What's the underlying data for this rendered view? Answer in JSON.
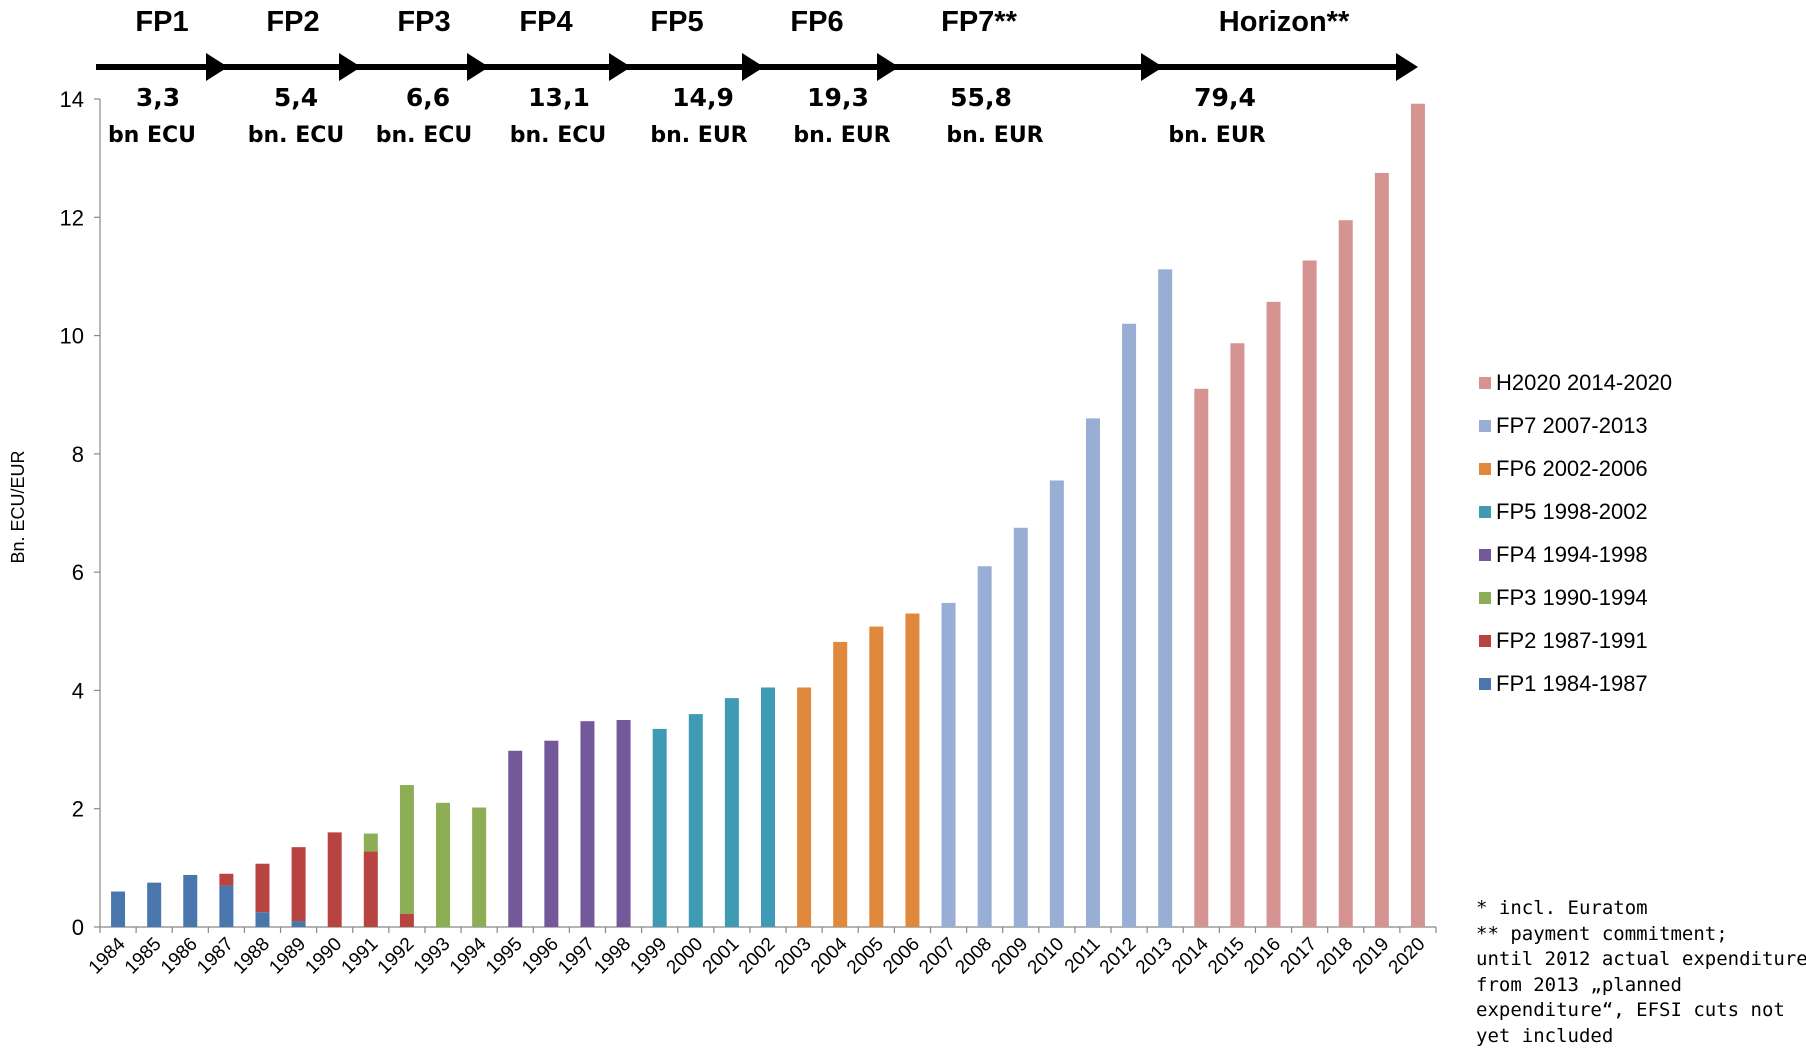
{
  "chart_data": {
    "type": "bar",
    "ylabel": "Bn. ECU/EUR",
    "ylim": [
      0,
      14
    ],
    "yticks": [
      "0",
      "2",
      "4",
      "6",
      "8",
      "10",
      "12",
      "14"
    ],
    "grid": false,
    "legend_position": "right",
    "categories": [
      "1984",
      "1985",
      "1986",
      "1987",
      "1988",
      "1989",
      "1990",
      "1991",
      "1992",
      "1993",
      "1994",
      "1995",
      "1996",
      "1997",
      "1998",
      "1999",
      "2000",
      "2001",
      "2002",
      "2003",
      "2004",
      "2005",
      "2006",
      "2007",
      "2008",
      "2009",
      "2010",
      "2011",
      "2012",
      "2013",
      "2014",
      "2015",
      "2016",
      "2017",
      "2018",
      "2019",
      "2020"
    ],
    "series": [
      {
        "name": "FP1 1984-1987",
        "color": "#4a76ae",
        "values": [
          0.6,
          0.75,
          0.88,
          0.7,
          0.25,
          0.1,
          0,
          0,
          0,
          0,
          0,
          0,
          0,
          0,
          0,
          0,
          0,
          0,
          0,
          0,
          0,
          0,
          0,
          0,
          0,
          0,
          0,
          0,
          0,
          0,
          0,
          0,
          0,
          0,
          0,
          0,
          0
        ]
      },
      {
        "name": "FP2 1987-1991",
        "color": "#b84442",
        "values": [
          0,
          0,
          0,
          0.2,
          0.82,
          1.25,
          1.6,
          1.28,
          0.22,
          0,
          0,
          0,
          0,
          0,
          0,
          0,
          0,
          0,
          0,
          0,
          0,
          0,
          0,
          0,
          0,
          0,
          0,
          0,
          0,
          0,
          0,
          0,
          0,
          0,
          0,
          0,
          0
        ]
      },
      {
        "name": "FP3 1990-1994",
        "color": "#8eae55",
        "values": [
          0,
          0,
          0,
          0,
          0,
          0,
          0,
          0.3,
          2.18,
          2.1,
          2.02,
          0,
          0,
          0,
          0,
          0,
          0,
          0,
          0,
          0,
          0,
          0,
          0,
          0,
          0,
          0,
          0,
          0,
          0,
          0,
          0,
          0,
          0,
          0,
          0,
          0,
          0
        ]
      },
      {
        "name": "FP4 1994-1998",
        "color": "#74599a",
        "values": [
          0,
          0,
          0,
          0,
          0,
          0,
          0,
          0,
          0,
          0,
          0,
          2.98,
          3.15,
          3.48,
          3.5,
          0,
          0,
          0,
          0,
          0,
          0,
          0,
          0,
          0,
          0,
          0,
          0,
          0,
          0,
          0,
          0,
          0,
          0,
          0,
          0,
          0,
          0
        ]
      },
      {
        "name": "FP5 1998-2002",
        "color": "#3f9bb3",
        "values": [
          0,
          0,
          0,
          0,
          0,
          0,
          0,
          0,
          0,
          0,
          0,
          0,
          0,
          0,
          0,
          3.35,
          3.6,
          3.87,
          4.05,
          0,
          0,
          0,
          0,
          0,
          0,
          0,
          0,
          0,
          0,
          0,
          0,
          0,
          0,
          0,
          0,
          0,
          0
        ]
      },
      {
        "name": "FP6 2002-2006",
        "color": "#e0883c",
        "values": [
          0,
          0,
          0,
          0,
          0,
          0,
          0,
          0,
          0,
          0,
          0,
          0,
          0,
          0,
          0,
          0,
          0,
          0,
          0,
          4.05,
          4.82,
          5.08,
          5.3,
          0,
          0,
          0,
          0,
          0,
          0,
          0,
          0,
          0,
          0,
          0,
          0,
          0,
          0
        ]
      },
      {
        "name": "FP7 2007-2013",
        "color": "#98aed5",
        "values": [
          0,
          0,
          0,
          0,
          0,
          0,
          0,
          0,
          0,
          0,
          0,
          0,
          0,
          0,
          0,
          0,
          0,
          0,
          0,
          0,
          0,
          0,
          0,
          5.48,
          6.1,
          6.75,
          7.55,
          8.6,
          10.2,
          11.12,
          0,
          0,
          0,
          0,
          0,
          0,
          0
        ]
      },
      {
        "name": "H2020 2014-2020",
        "color": "#d59392",
        "values": [
          0,
          0,
          0,
          0,
          0,
          0,
          0,
          0,
          0,
          0,
          0,
          0,
          0,
          0,
          0,
          0,
          0,
          0,
          0,
          0,
          0,
          0,
          0,
          0,
          0,
          0,
          0,
          0,
          0,
          0,
          9.1,
          9.87,
          10.57,
          11.27,
          11.95,
          12.75,
          13.92
        ]
      }
    ],
    "legend_order": [
      "H2020 2014-2020",
      "FP7 2007-2013",
      "FP6 2002-2006",
      "FP5 1998-2002",
      "FP4 1994-1998",
      "FP3 1990-1994",
      "FP2 1987-1991",
      "FP1 1984-1987"
    ]
  },
  "programmes": [
    {
      "name": "FP1",
      "amount": "3,3",
      "unit": "bn ECU"
    },
    {
      "name": "FP2",
      "amount": "5,4",
      "unit": "bn. ECU"
    },
    {
      "name": "FP3",
      "amount": "6,6",
      "unit": "bn. ECU"
    },
    {
      "name": "FP4",
      "amount": "13,1",
      "unit": "bn. ECU"
    },
    {
      "name": "FP5",
      "amount": "14,9",
      "unit": "bn. EUR"
    },
    {
      "name": "FP6",
      "amount": "19,3",
      "unit": "bn. EUR"
    },
    {
      "name": "FP7**",
      "amount": "55,8",
      "unit": "bn. EUR"
    },
    {
      "name": "Horizon**",
      "amount": "79,4",
      "unit": "bn. EUR"
    }
  ],
  "footnote": {
    "line1": "* incl. Euratom",
    "lines": [
      "** payment commitment;",
      "until 2012 actual expenditure,",
      "from 2013 „planned",
      "expenditure“, EFSI cuts not",
      "yet included"
    ]
  }
}
